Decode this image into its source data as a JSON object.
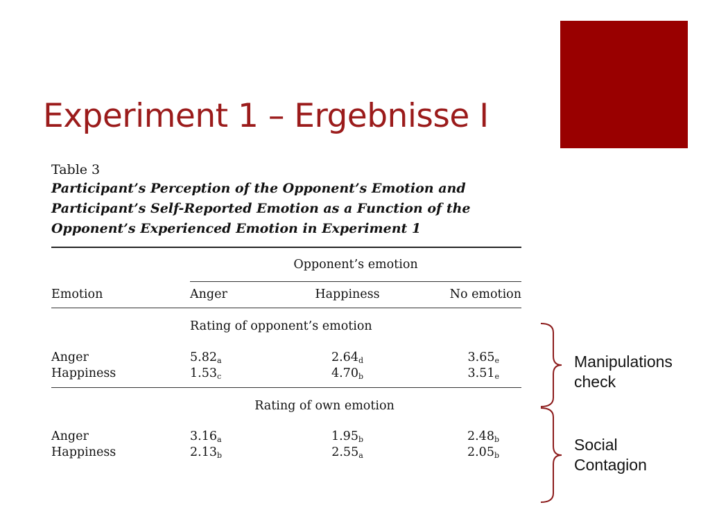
{
  "slide": {
    "title": "Experiment 1 – Ergebnisse I",
    "accent_color": "#990000",
    "title_color": "#9b1b1b"
  },
  "table": {
    "number": "Table 3",
    "caption": "Participant’s Perception of the Opponent’s Emotion and Participant’s Self-Reported Emotion as a Function of the Opponent’s Experienced Emotion in Experiment 1",
    "spanner": "Opponent’s emotion",
    "columns": [
      "Emotion",
      "Anger",
      "Happiness",
      "No emotion"
    ],
    "sections": [
      {
        "heading": "Rating of opponent’s emotion",
        "rows": [
          {
            "label": "Anger",
            "cells": [
              {
                "v": "5.82",
                "s": "a"
              },
              {
                "v": "2.64",
                "s": "d"
              },
              {
                "v": "3.65",
                "s": "e"
              }
            ]
          },
          {
            "label": "Happiness",
            "cells": [
              {
                "v": "1.53",
                "s": "c"
              },
              {
                "v": "4.70",
                "s": "b"
              },
              {
                "v": "3.51",
                "s": "e"
              }
            ]
          }
        ]
      },
      {
        "heading": "Rating of own emotion",
        "rows": [
          {
            "label": "Anger",
            "cells": [
              {
                "v": "3.16",
                "s": "a"
              },
              {
                "v": "1.95",
                "s": "b"
              },
              {
                "v": "2.48",
                "s": "b"
              }
            ]
          },
          {
            "label": "Happiness",
            "cells": [
              {
                "v": "2.13",
                "s": "b"
              },
              {
                "v": "2.55",
                "s": "a"
              },
              {
                "v": "2.05",
                "s": "b"
              }
            ]
          }
        ]
      }
    ]
  },
  "annotations": [
    {
      "line1": "Manipulations",
      "line2": "check"
    },
    {
      "line1": "Social",
      "line2": "Contagion"
    }
  ],
  "brace_color": "#8b1a1a"
}
